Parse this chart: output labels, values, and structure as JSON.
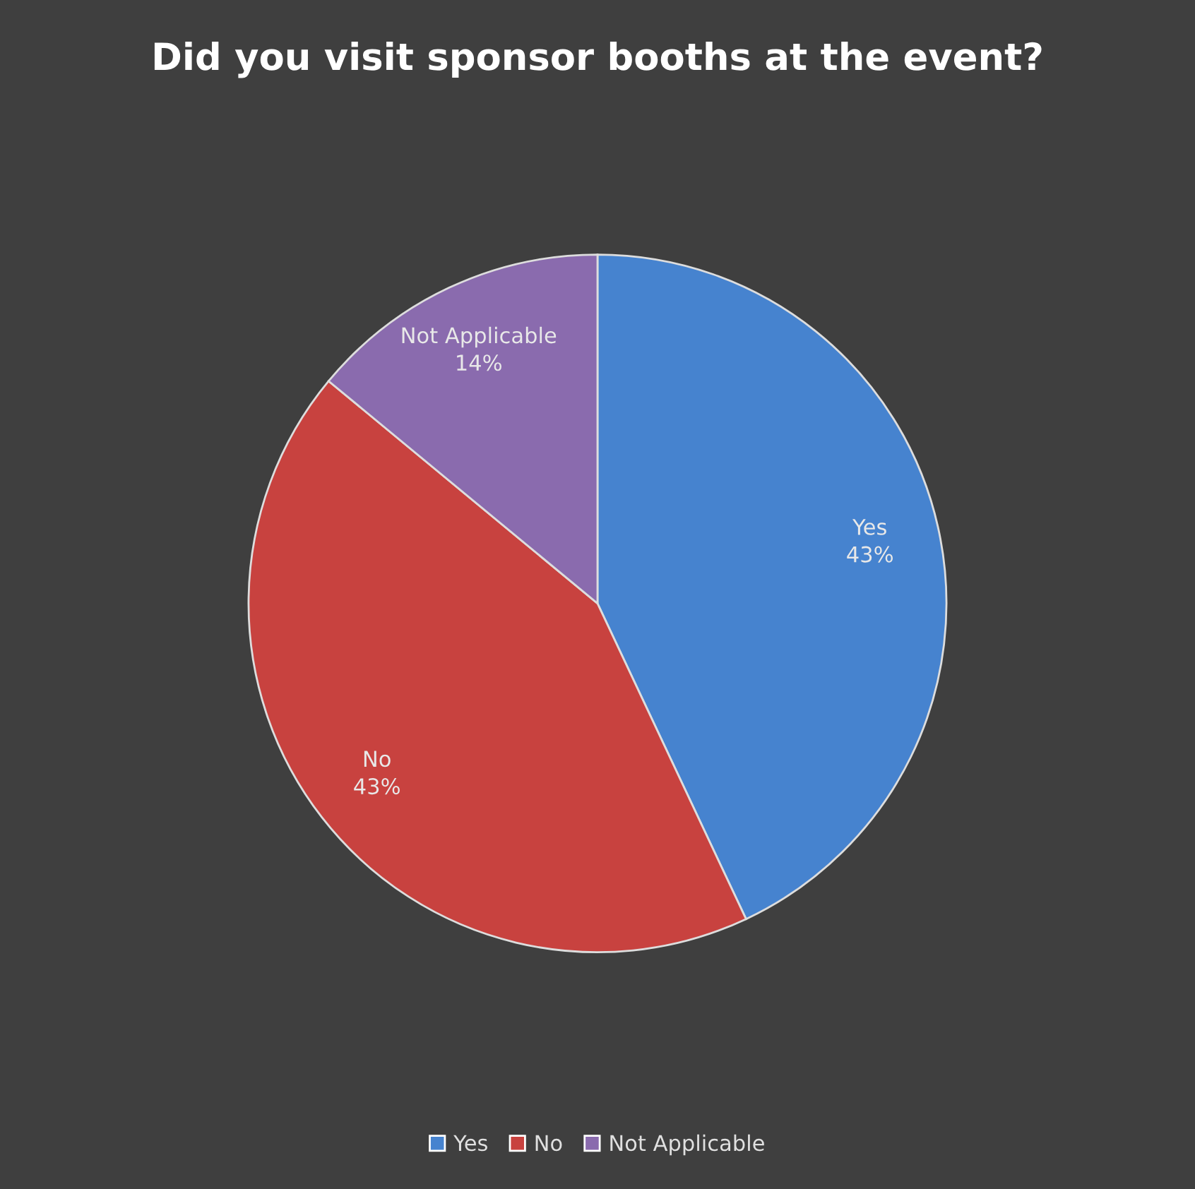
{
  "chart_data": {
    "type": "pie",
    "title": "Did you visit sponsor booths at the event?",
    "categories": [
      "Yes",
      "No",
      "Not Applicable"
    ],
    "values": [
      43,
      43,
      14
    ],
    "colors": [
      "#4683cf",
      "#c8423f",
      "#8a6bae"
    ],
    "value_labels": [
      "43%",
      "43%",
      "14%"
    ],
    "legend": "bottom"
  }
}
